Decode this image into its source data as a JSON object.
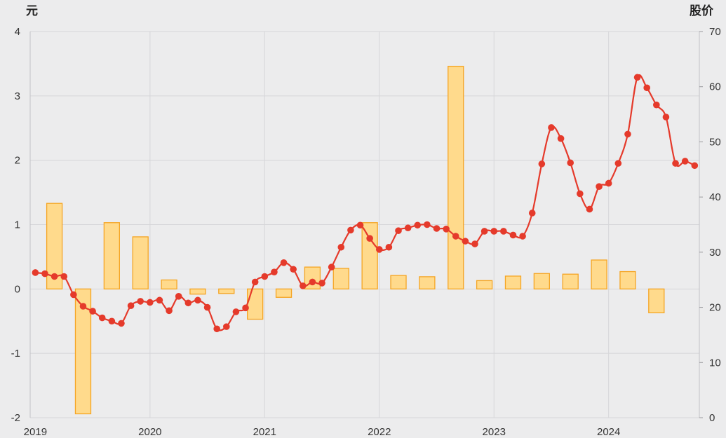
{
  "colors": {
    "background": "#ececed",
    "grid": "#d6d6d9",
    "axis": "#c2c2c6",
    "tick_mark": "#9a9a9e",
    "bar_fill": "#ffda8c",
    "bar_stroke": "#f5a524",
    "line": "#e53a2b",
    "text": "#333333"
  },
  "chart_data": {
    "type": "bar",
    "xlim": [
      "2018-12-15",
      "2024-10-16"
    ],
    "x_ticks": [
      "2019",
      "2020",
      "2021",
      "2022",
      "2023",
      "2024"
    ],
    "y_left": {
      "label": "元",
      "ylim": [
        -2,
        4
      ],
      "ticks": [
        4,
        3,
        2,
        1,
        0,
        -1,
        -2
      ]
    },
    "y_right": {
      "label": "股价",
      "ylim": [
        0,
        70
      ],
      "ticks": [
        70,
        60,
        50,
        40,
        30,
        20,
        10,
        0
      ]
    },
    "grid": true,
    "legend": "none",
    "series": [
      {
        "type": "bar",
        "axis": "left",
        "x": [
          "2019-03",
          "2019-06",
          "2019-09",
          "2019-12",
          "2020-03",
          "2020-06",
          "2020-09",
          "2020-12",
          "2021-03",
          "2021-06",
          "2021-09",
          "2021-12",
          "2022-03",
          "2022-06",
          "2022-09",
          "2022-12",
          "2023-03",
          "2023-06",
          "2023-09",
          "2023-12",
          "2024-03",
          "2024-06"
        ],
        "values": [
          1.33,
          -1.94,
          1.03,
          0.81,
          0.14,
          -0.08,
          -0.07,
          -0.47,
          -0.13,
          0.34,
          0.32,
          1.03,
          0.21,
          0.19,
          3.46,
          0.13,
          0.2,
          0.24,
          0.23,
          0.45,
          0.27,
          -0.37
        ]
      },
      {
        "type": "line",
        "axis": "right",
        "smooth": true,
        "marker": "circle",
        "x": [
          "2019-01",
          "2019-02",
          "2019-03",
          "2019-04",
          "2019-05",
          "2019-06",
          "2019-07",
          "2019-08",
          "2019-09",
          "2019-10",
          "2019-11",
          "2019-12",
          "2020-01",
          "2020-02",
          "2020-03",
          "2020-04",
          "2020-05",
          "2020-06",
          "2020-07",
          "2020-08",
          "2020-09",
          "2020-10",
          "2020-11",
          "2020-12",
          "2021-01",
          "2021-02",
          "2021-03",
          "2021-04",
          "2021-05",
          "2021-06",
          "2021-07",
          "2021-08",
          "2021-09",
          "2021-10",
          "2021-11",
          "2021-12",
          "2022-01",
          "2022-02",
          "2022-03",
          "2022-04",
          "2022-05",
          "2022-06",
          "2022-07",
          "2022-08",
          "2022-09",
          "2022-10",
          "2022-11",
          "2022-12",
          "2023-01",
          "2023-02",
          "2023-03",
          "2023-04",
          "2023-05",
          "2023-06",
          "2023-07",
          "2023-08",
          "2023-09",
          "2023-10",
          "2023-11",
          "2023-12",
          "2024-01",
          "2024-02",
          "2024-03",
          "2024-04",
          "2024-05",
          "2024-06",
          "2024-07",
          "2024-08",
          "2024-09",
          "2024-10"
        ],
        "values": [
          26.3,
          26.1,
          25.6,
          25.6,
          22.3,
          20.2,
          19.3,
          18.1,
          17.5,
          17.1,
          20.3,
          21.1,
          20.9,
          21.3,
          19.4,
          22.0,
          20.8,
          21.3,
          20.0,
          16.1,
          16.5,
          19.2,
          19.9,
          24.6,
          25.6,
          26.4,
          28.1,
          26.9,
          23.9,
          24.6,
          24.4,
          27.3,
          30.9,
          34.0,
          34.9,
          32.5,
          30.5,
          30.9,
          33.9,
          34.4,
          34.9,
          35.0,
          34.3,
          34.2,
          32.9,
          32.0,
          31.5,
          33.8,
          33.8,
          33.8,
          33.1,
          32.9,
          37.1,
          46.0,
          52.6,
          50.6,
          46.2,
          40.6,
          37.8,
          41.9,
          42.5,
          46.1,
          51.4,
          61.7,
          59.8,
          56.7,
          54.5,
          46.1,
          46.5,
          45.7
        ]
      }
    ]
  }
}
